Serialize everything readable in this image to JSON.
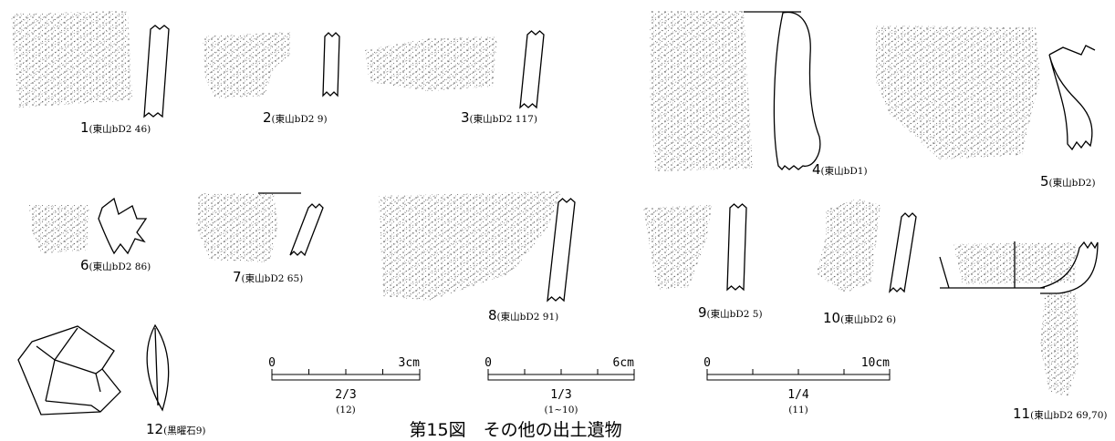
{
  "figures": [
    {
      "number": "1",
      "provenance": "(東山bD2 46)"
    },
    {
      "number": "2",
      "provenance": "(東山bD2 9)"
    },
    {
      "number": "3",
      "provenance": "(東山bD2 117)"
    },
    {
      "number": "4",
      "provenance": "(東山bD1)"
    },
    {
      "number": "5",
      "provenance": "(東山bD2)"
    },
    {
      "number": "6",
      "provenance": "(東山bD2 86)"
    },
    {
      "number": "7",
      "provenance": "(東山bD2 65)"
    },
    {
      "number": "8",
      "provenance": "(東山bD2 91)"
    },
    {
      "number": "9",
      "provenance": "(東山bD2 5)"
    },
    {
      "number": "10",
      "provenance": "(東山bD2 6)"
    },
    {
      "number": "11",
      "provenance": "(東山bD2 69,70)"
    },
    {
      "number": "12",
      "provenance": "(黒曜石9)"
    }
  ],
  "scales": [
    {
      "zero": "0",
      "length": "3cm",
      "ratio": "2/3",
      "applies_to": "(12)"
    },
    {
      "zero": "0",
      "length": "6cm",
      "ratio": "1/3",
      "applies_to": "(1~10)"
    },
    {
      "zero": "0",
      "length": "10cm",
      "ratio": "1/4",
      "applies_to": "(11)"
    }
  ],
  "caption": "第15図　その他の出土遺物"
}
